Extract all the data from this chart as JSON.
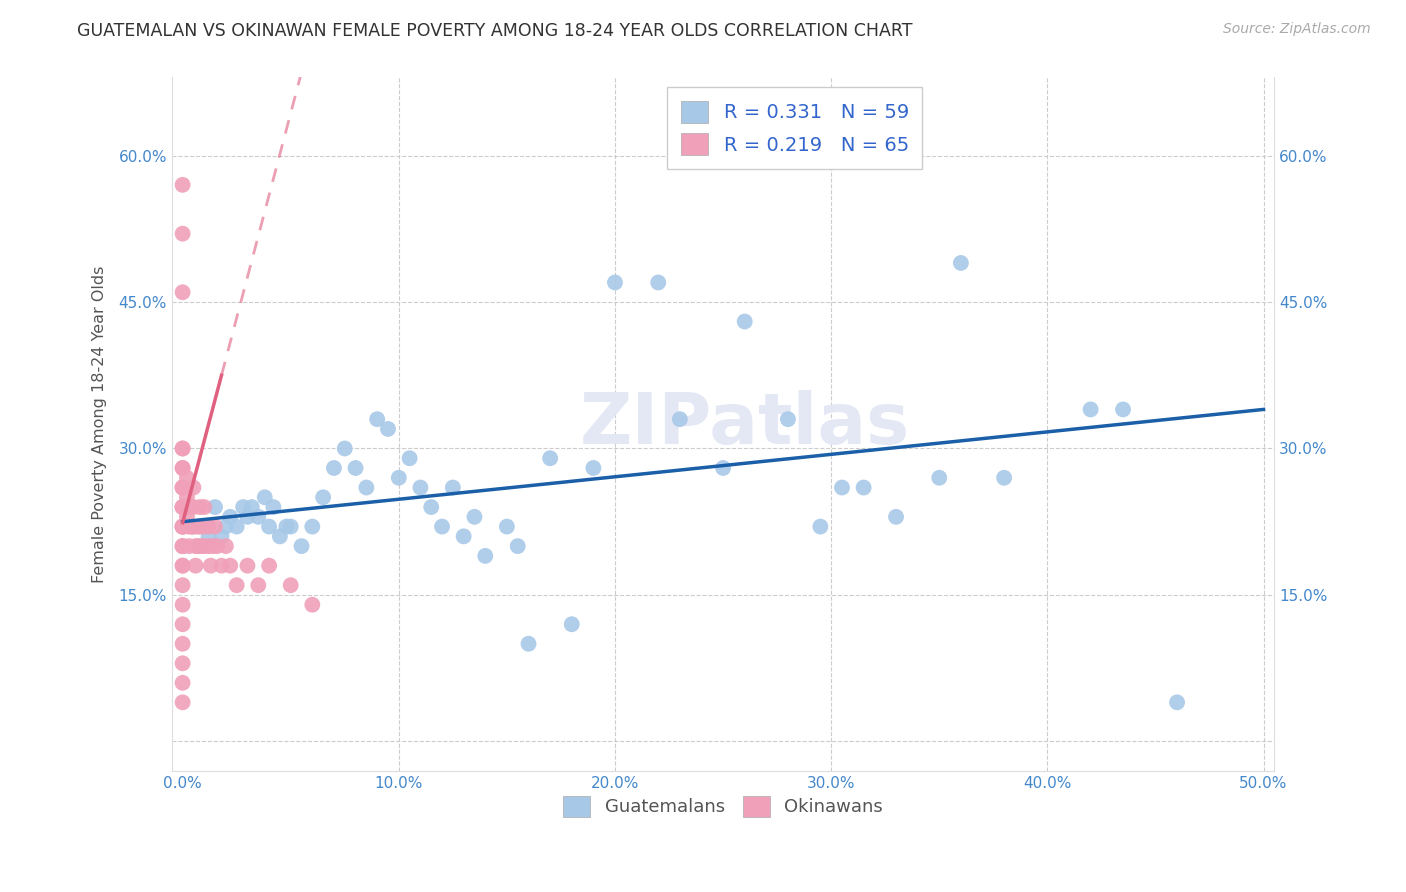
{
  "title": "GUATEMALAN VS OKINAWAN FEMALE POVERTY AMONG 18-24 YEAR OLDS CORRELATION CHART",
  "source": "Source: ZipAtlas.com",
  "ylabel": "Female Poverty Among 18-24 Year Olds",
  "xlim": [
    -0.005,
    0.505
  ],
  "ylim": [
    -0.03,
    0.68
  ],
  "xticks": [
    0.0,
    0.1,
    0.2,
    0.3,
    0.4,
    0.5
  ],
  "xtick_labels": [
    "0.0%",
    "10.0%",
    "20.0%",
    "30.0%",
    "40.0%",
    "50.0%"
  ],
  "yticks": [
    0.0,
    0.15,
    0.3,
    0.45,
    0.6
  ],
  "ytick_labels": [
    "",
    "15.0%",
    "30.0%",
    "45.0%",
    "60.0%"
  ],
  "right_ytick_labels": [
    "",
    "15.0%",
    "30.0%",
    "45.0%",
    "60.0%"
  ],
  "guatemalan_color": "#a8c8e8",
  "okinawan_color": "#f0a0b8",
  "trend_guatemalan_color": "#1a5fa8",
  "trend_okinawan_color": "#e06080",
  "R_guatemalan": 0.331,
  "N_guatemalan": 59,
  "R_okinawan": 0.219,
  "N_okinawan": 65,
  "watermark": "ZIPatlas",
  "guatemalans_x": [
    0.005,
    0.008,
    0.01,
    0.012,
    0.015,
    0.018,
    0.02,
    0.022,
    0.025,
    0.028,
    0.03,
    0.032,
    0.035,
    0.038,
    0.04,
    0.042,
    0.045,
    0.048,
    0.05,
    0.055,
    0.06,
    0.065,
    0.07,
    0.075,
    0.08,
    0.085,
    0.09,
    0.095,
    0.1,
    0.105,
    0.11,
    0.115,
    0.12,
    0.125,
    0.13,
    0.135,
    0.14,
    0.15,
    0.155,
    0.16,
    0.17,
    0.18,
    0.19,
    0.2,
    0.22,
    0.23,
    0.25,
    0.26,
    0.28,
    0.295,
    0.305,
    0.315,
    0.33,
    0.35,
    0.36,
    0.38,
    0.42,
    0.435,
    0.46
  ],
  "guatemalans_y": [
    0.22,
    0.2,
    0.22,
    0.21,
    0.24,
    0.21,
    0.22,
    0.23,
    0.22,
    0.24,
    0.23,
    0.24,
    0.23,
    0.25,
    0.22,
    0.24,
    0.21,
    0.22,
    0.22,
    0.2,
    0.22,
    0.25,
    0.28,
    0.3,
    0.28,
    0.26,
    0.33,
    0.32,
    0.27,
    0.29,
    0.26,
    0.24,
    0.22,
    0.26,
    0.21,
    0.23,
    0.19,
    0.22,
    0.2,
    0.1,
    0.29,
    0.12,
    0.28,
    0.47,
    0.47,
    0.33,
    0.28,
    0.43,
    0.33,
    0.22,
    0.26,
    0.26,
    0.23,
    0.27,
    0.49,
    0.27,
    0.34,
    0.34,
    0.04
  ],
  "okinawans_x": [
    0.0,
    0.0,
    0.0,
    0.0,
    0.0,
    0.0,
    0.0,
    0.0,
    0.0,
    0.0,
    0.0,
    0.0,
    0.0,
    0.0,
    0.0,
    0.0,
    0.0,
    0.0,
    0.0,
    0.0,
    0.0,
    0.0,
    0.0,
    0.0,
    0.0,
    0.0,
    0.0,
    0.0,
    0.0,
    0.0,
    0.002,
    0.002,
    0.002,
    0.003,
    0.003,
    0.004,
    0.004,
    0.005,
    0.005,
    0.005,
    0.006,
    0.006,
    0.007,
    0.007,
    0.008,
    0.008,
    0.009,
    0.01,
    0.01,
    0.01,
    0.012,
    0.012,
    0.013,
    0.014,
    0.015,
    0.016,
    0.018,
    0.02,
    0.022,
    0.025,
    0.03,
    0.035,
    0.04,
    0.05,
    0.06
  ],
  "okinawans_y": [
    0.22,
    0.24,
    0.26,
    0.28,
    0.3,
    0.22,
    0.24,
    0.26,
    0.2,
    0.22,
    0.24,
    0.18,
    0.2,
    0.16,
    0.14,
    0.12,
    0.1,
    0.08,
    0.06,
    0.04,
    0.57,
    0.52,
    0.46,
    0.3,
    0.28,
    0.26,
    0.24,
    0.22,
    0.2,
    0.18,
    0.27,
    0.25,
    0.23,
    0.22,
    0.2,
    0.24,
    0.22,
    0.26,
    0.24,
    0.22,
    0.2,
    0.18,
    0.22,
    0.2,
    0.24,
    0.22,
    0.2,
    0.24,
    0.22,
    0.2,
    0.22,
    0.2,
    0.18,
    0.2,
    0.22,
    0.2,
    0.18,
    0.2,
    0.18,
    0.16,
    0.18,
    0.16,
    0.18,
    0.16,
    0.14
  ],
  "trend_g_x0": 0.0,
  "trend_g_x1": 0.5,
  "trend_g_y0": 0.225,
  "trend_g_y1": 0.34,
  "trend_o_x0": 0.0,
  "trend_o_x1": 0.06,
  "trend_o_y0": 0.22,
  "trend_o_y1": 0.38
}
